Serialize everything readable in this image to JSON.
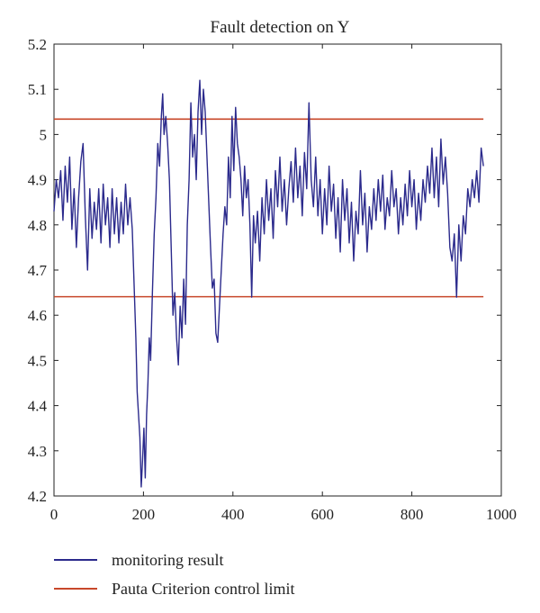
{
  "chart_data": {
    "type": "line",
    "title": "Fault detection on Y",
    "xlabel": "",
    "ylabel": "",
    "xlim": [
      0,
      1000
    ],
    "ylim": [
      4.2,
      5.2
    ],
    "xticks": [
      0,
      200,
      400,
      600,
      800,
      1000
    ],
    "yticks": [
      4.2,
      4.3,
      4.4,
      4.5,
      4.6,
      4.7,
      4.8,
      4.9,
      5.0,
      5.1,
      5.2
    ],
    "xtick_labels": [
      "0",
      "200",
      "400",
      "600",
      "800",
      "1000"
    ],
    "ytick_labels": [
      "4.2",
      "4.3",
      "4.4",
      "4.5",
      "4.6",
      "4.7",
      "4.8",
      "4.9",
      "5",
      "5.1",
      "5.2"
    ],
    "grid": false,
    "legend_position": "bottom",
    "series": [
      {
        "name": "monitoring result",
        "color": "#2b2a8c",
        "points": [
          [
            0,
            4.83
          ],
          [
            5,
            4.9
          ],
          [
            10,
            4.86
          ],
          [
            15,
            4.92
          ],
          [
            20,
            4.81
          ],
          [
            25,
            4.93
          ],
          [
            30,
            4.85
          ],
          [
            35,
            4.95
          ],
          [
            40,
            4.79
          ],
          [
            45,
            4.88
          ],
          [
            50,
            4.75
          ],
          [
            55,
            4.86
          ],
          [
            60,
            4.94
          ],
          [
            65,
            4.98
          ],
          [
            70,
            4.82
          ],
          [
            75,
            4.7
          ],
          [
            80,
            4.88
          ],
          [
            85,
            4.77
          ],
          [
            90,
            4.85
          ],
          [
            95,
            4.79
          ],
          [
            100,
            4.88
          ],
          [
            105,
            4.76
          ],
          [
            110,
            4.89
          ],
          [
            115,
            4.8
          ],
          [
            120,
            4.86
          ],
          [
            125,
            4.75
          ],
          [
            130,
            4.88
          ],
          [
            135,
            4.78
          ],
          [
            140,
            4.86
          ],
          [
            145,
            4.76
          ],
          [
            150,
            4.85
          ],
          [
            155,
            4.78
          ],
          [
            160,
            4.89
          ],
          [
            165,
            4.8
          ],
          [
            170,
            4.86
          ],
          [
            175,
            4.79
          ],
          [
            180,
            4.64
          ],
          [
            183,
            4.55
          ],
          [
            186,
            4.43
          ],
          [
            189,
            4.38
          ],
          [
            192,
            4.33
          ],
          [
            195,
            4.22
          ],
          [
            198,
            4.28
          ],
          [
            201,
            4.35
          ],
          [
            204,
            4.24
          ],
          [
            207,
            4.38
          ],
          [
            210,
            4.45
          ],
          [
            213,
            4.55
          ],
          [
            216,
            4.5
          ],
          [
            220,
            4.65
          ],
          [
            224,
            4.78
          ],
          [
            228,
            4.86
          ],
          [
            232,
            4.98
          ],
          [
            236,
            4.93
          ],
          [
            240,
            5.04
          ],
          [
            243,
            5.09
          ],
          [
            246,
            5.0
          ],
          [
            250,
            5.04
          ],
          [
            254,
            4.98
          ],
          [
            258,
            4.9
          ],
          [
            262,
            4.75
          ],
          [
            266,
            4.6
          ],
          [
            270,
            4.65
          ],
          [
            274,
            4.55
          ],
          [
            278,
            4.49
          ],
          [
            282,
            4.62
          ],
          [
            286,
            4.55
          ],
          [
            290,
            4.68
          ],
          [
            294,
            4.58
          ],
          [
            298,
            4.8
          ],
          [
            302,
            4.9
          ],
          [
            306,
            5.07
          ],
          [
            310,
            4.95
          ],
          [
            314,
            5.0
          ],
          [
            318,
            4.9
          ],
          [
            322,
            5.05
          ],
          [
            326,
            5.12
          ],
          [
            330,
            5.0
          ],
          [
            334,
            5.1
          ],
          [
            338,
            5.05
          ],
          [
            342,
            4.95
          ],
          [
            346,
            4.85
          ],
          [
            350,
            4.75
          ],
          [
            354,
            4.66
          ],
          [
            358,
            4.68
          ],
          [
            362,
            4.56
          ],
          [
            366,
            4.54
          ],
          [
            370,
            4.62
          ],
          [
            374,
            4.7
          ],
          [
            378,
            4.78
          ],
          [
            382,
            4.84
          ],
          [
            386,
            4.8
          ],
          [
            390,
            4.95
          ],
          [
            394,
            4.86
          ],
          [
            398,
            5.04
          ],
          [
            402,
            4.92
          ],
          [
            406,
            5.06
          ],
          [
            410,
            4.98
          ],
          [
            414,
            4.95
          ],
          [
            418,
            4.9
          ],
          [
            422,
            4.82
          ],
          [
            426,
            4.93
          ],
          [
            430,
            4.86
          ],
          [
            434,
            4.9
          ],
          [
            438,
            4.8
          ],
          [
            442,
            4.64
          ],
          [
            446,
            4.82
          ],
          [
            450,
            4.76
          ],
          [
            455,
            4.83
          ],
          [
            460,
            4.72
          ],
          [
            465,
            4.86
          ],
          [
            470,
            4.78
          ],
          [
            475,
            4.9
          ],
          [
            480,
            4.81
          ],
          [
            485,
            4.88
          ],
          [
            490,
            4.77
          ],
          [
            495,
            4.92
          ],
          [
            500,
            4.84
          ],
          [
            505,
            4.95
          ],
          [
            510,
            4.83
          ],
          [
            515,
            4.9
          ],
          [
            520,
            4.8
          ],
          [
            525,
            4.88
          ],
          [
            530,
            4.94
          ],
          [
            535,
            4.85
          ],
          [
            540,
            4.97
          ],
          [
            545,
            4.86
          ],
          [
            550,
            4.93
          ],
          [
            555,
            4.82
          ],
          [
            560,
            4.96
          ],
          [
            565,
            4.88
          ],
          [
            570,
            5.07
          ],
          [
            575,
            4.9
          ],
          [
            580,
            4.84
          ],
          [
            585,
            4.95
          ],
          [
            590,
            4.82
          ],
          [
            595,
            4.9
          ],
          [
            600,
            4.78
          ],
          [
            605,
            4.88
          ],
          [
            610,
            4.8
          ],
          [
            615,
            4.93
          ],
          [
            620,
            4.83
          ],
          [
            625,
            4.89
          ],
          [
            630,
            4.77
          ],
          [
            635,
            4.86
          ],
          [
            640,
            4.74
          ],
          [
            645,
            4.9
          ],
          [
            650,
            4.81
          ],
          [
            655,
            4.88
          ],
          [
            660,
            4.76
          ],
          [
            665,
            4.85
          ],
          [
            670,
            4.72
          ],
          [
            675,
            4.83
          ],
          [
            680,
            4.78
          ],
          [
            685,
            4.92
          ],
          [
            690,
            4.8
          ],
          [
            695,
            4.87
          ],
          [
            700,
            4.74
          ],
          [
            705,
            4.84
          ],
          [
            710,
            4.79
          ],
          [
            715,
            4.88
          ],
          [
            720,
            4.81
          ],
          [
            725,
            4.9
          ],
          [
            730,
            4.83
          ],
          [
            735,
            4.91
          ],
          [
            740,
            4.79
          ],
          [
            745,
            4.86
          ],
          [
            750,
            4.82
          ],
          [
            755,
            4.92
          ],
          [
            760,
            4.84
          ],
          [
            765,
            4.88
          ],
          [
            770,
            4.78
          ],
          [
            775,
            4.86
          ],
          [
            780,
            4.8
          ],
          [
            785,
            4.89
          ],
          [
            790,
            4.82
          ],
          [
            795,
            4.92
          ],
          [
            800,
            4.84
          ],
          [
            805,
            4.9
          ],
          [
            810,
            4.79
          ],
          [
            815,
            4.87
          ],
          [
            820,
            4.81
          ],
          [
            825,
            4.9
          ],
          [
            830,
            4.85
          ],
          [
            835,
            4.93
          ],
          [
            840,
            4.87
          ],
          [
            845,
            4.97
          ],
          [
            850,
            4.86
          ],
          [
            855,
            4.95
          ],
          [
            860,
            4.84
          ],
          [
            865,
            4.99
          ],
          [
            870,
            4.89
          ],
          [
            875,
            4.95
          ],
          [
            880,
            4.87
          ],
          [
            885,
            4.75
          ],
          [
            890,
            4.72
          ],
          [
            895,
            4.78
          ],
          [
            900,
            4.64
          ],
          [
            905,
            4.8
          ],
          [
            910,
            4.72
          ],
          [
            915,
            4.82
          ],
          [
            920,
            4.78
          ],
          [
            925,
            4.88
          ],
          [
            930,
            4.84
          ],
          [
            935,
            4.9
          ],
          [
            940,
            4.86
          ],
          [
            945,
            4.92
          ],
          [
            950,
            4.85
          ],
          [
            955,
            4.97
          ],
          [
            960,
            4.93
          ]
        ]
      },
      {
        "name": "Pauta Criterion control limit",
        "color": "#c8472a",
        "upper": 5.034,
        "lower": 4.641,
        "x_range": [
          0,
          960
        ]
      }
    ]
  }
}
